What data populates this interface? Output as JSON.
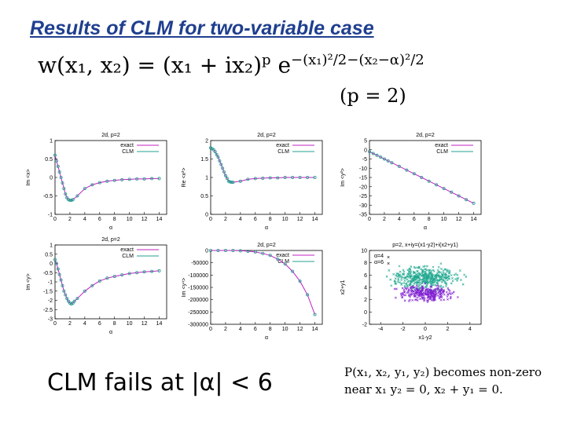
{
  "slide": {
    "title": "Results of CLM for two-variable case",
    "formula_lhs": "w(x₁, x₂)  =  (x₁ + ix₂)",
    "formula_p": "p",
    "formula_e": " e",
    "formula_exp": "−(x₁)²/2−(x₂−α)²/2",
    "p_condition": "(p = 2)",
    "conclusion": "CLM fails at |α| < 6",
    "note_line1": "P(x₁, x₂, y₁, y₂) becomes non-zero",
    "note_line2": "near x₁   y₂ = 0,  x₂ + y₁ = 0."
  },
  "colors": {
    "exact": "#c020c0",
    "clm": "#20a090",
    "purple": "#8020d0",
    "green": "#20a890"
  },
  "chart_data": [
    {
      "type": "line",
      "title": "2d, p=2",
      "ylabel": "Im <x>",
      "xlabel": "α",
      "xlim": [
        0,
        15
      ],
      "ylim": [
        -1,
        1
      ],
      "xticks": [
        0,
        2,
        4,
        6,
        8,
        10,
        12,
        14
      ],
      "yticks": [
        -1,
        -0.5,
        0,
        0.5,
        1
      ],
      "legend": [
        "exact",
        "CLM"
      ],
      "series": [
        {
          "name": "CLM",
          "x": [
            0,
            0.2,
            0.4,
            0.6,
            0.8,
            1,
            1.2,
            1.4,
            1.6,
            1.8,
            2,
            2.2,
            2.4,
            3,
            4,
            5,
            6,
            7,
            8,
            9,
            10,
            11,
            12,
            13,
            14
          ],
          "y": [
            0.6,
            0.45,
            0.3,
            0.15,
            0,
            -0.15,
            -0.3,
            -0.45,
            -0.55,
            -0.6,
            -0.62,
            -0.62,
            -0.6,
            -0.5,
            -0.3,
            -0.2,
            -0.14,
            -0.1,
            -0.08,
            -0.06,
            -0.05,
            -0.04,
            -0.04,
            -0.03,
            -0.03
          ]
        }
      ]
    },
    {
      "type": "line",
      "title": "2d, p=2",
      "ylabel": "Re <x²>",
      "xlabel": "α",
      "xlim": [
        0,
        15
      ],
      "ylim": [
        0,
        2
      ],
      "xticks": [
        0,
        2,
        4,
        6,
        8,
        10,
        12,
        14
      ],
      "yticks": [
        0,
        0.5,
        1,
        1.5,
        2
      ],
      "legend": [
        "exact",
        "CLM"
      ],
      "series": [
        {
          "name": "CLM",
          "x": [
            0,
            0.2,
            0.4,
            0.6,
            0.8,
            1,
            1.2,
            1.4,
            1.6,
            1.8,
            2,
            2.2,
            2.4,
            2.6,
            2.8,
            3,
            4,
            5,
            6,
            7,
            8,
            9,
            10,
            11,
            12,
            13,
            14
          ],
          "y": [
            1.8,
            1.78,
            1.75,
            1.7,
            1.62,
            1.55,
            1.45,
            1.35,
            1.25,
            1.15,
            1.05,
            0.98,
            0.9,
            0.88,
            0.87,
            0.87,
            0.9,
            0.95,
            0.97,
            0.98,
            0.99,
            0.99,
            1,
            1,
            1,
            1,
            1
          ]
        }
      ]
    },
    {
      "type": "line",
      "title": "2d, p=2",
      "ylabel": "Im <y²>",
      "xlabel": "α",
      "xlim": [
        0,
        15
      ],
      "ylim": [
        -35,
        5
      ],
      "xticks": [
        0,
        2,
        4,
        6,
        8,
        10,
        12,
        14
      ],
      "yticks": [
        -35,
        -30,
        -25,
        -20,
        -15,
        -10,
        -5,
        0,
        5
      ],
      "legend": [
        "exact",
        "CLM"
      ],
      "series": [
        {
          "name": "CLM",
          "x": [
            0,
            0.5,
            1,
            1.5,
            2,
            2.5,
            3,
            4,
            5,
            6,
            7,
            8,
            9,
            10,
            11,
            12,
            13,
            14
          ],
          "y": [
            -1,
            -2,
            -3,
            -4,
            -5,
            -6,
            -7,
            -9,
            -11,
            -13,
            -15,
            -17,
            -19,
            -21,
            -23,
            -25,
            -27,
            -29
          ]
        }
      ]
    },
    {
      "type": "line",
      "title": "2d, p=2",
      "ylabel": "Im <y>",
      "xlabel": "α",
      "xlim": [
        0,
        15
      ],
      "ylim": [
        -3,
        1
      ],
      "xticks": [
        0,
        2,
        4,
        6,
        8,
        10,
        12,
        14
      ],
      "yticks": [
        -3,
        -2.5,
        -2,
        -1.5,
        -1,
        -0.5,
        0,
        0.5,
        1
      ],
      "legend": [
        "exact",
        "CLM"
      ],
      "series": [
        {
          "name": "CLM",
          "x": [
            0,
            0.2,
            0.4,
            0.6,
            0.8,
            1,
            1.2,
            1.4,
            1.6,
            1.8,
            2,
            2.2,
            2.4,
            2.6,
            3,
            4,
            5,
            6,
            7,
            8,
            9,
            10,
            11,
            12,
            13,
            14
          ],
          "y": [
            0.2,
            0,
            -0.3,
            -0.6,
            -0.9,
            -1.2,
            -1.5,
            -1.7,
            -1.9,
            -2.05,
            -2.15,
            -2.2,
            -2.15,
            -2.05,
            -1.9,
            -1.5,
            -1.2,
            -0.95,
            -0.8,
            -0.7,
            -0.62,
            -0.55,
            -0.5,
            -0.46,
            -0.43,
            -0.4
          ]
        }
      ]
    },
    {
      "type": "line",
      "title": "2d, p=2",
      "ylabel": "Im <y⁴>",
      "xlabel": "α",
      "xlim": [
        0,
        15
      ],
      "ylim": [
        -300000,
        0
      ],
      "xticks": [
        0,
        2,
        4,
        6,
        8,
        10,
        12,
        14
      ],
      "yticks": [
        -300000,
        -250000,
        -200000,
        -150000,
        -100000,
        -50000,
        0
      ],
      "legend": [
        "exact",
        "CLM"
      ],
      "series": [
        {
          "name": "CLM",
          "x": [
            0,
            1,
            2,
            3,
            4,
            5,
            6,
            7,
            8,
            9,
            10,
            11,
            12,
            13,
            14
          ],
          "y": [
            0,
            0,
            0,
            0,
            -1000,
            -3000,
            -6000,
            -12000,
            -20000,
            -35000,
            -55000,
            -85000,
            -125000,
            -180000,
            -260000
          ]
        }
      ]
    },
    {
      "type": "scatter",
      "title": "p=2, x+iy=(x1-y2)+i(x2+y1)",
      "ylabel": "x2+y1",
      "xlabel": "x1-y2",
      "xlim": [
        -5,
        5
      ],
      "ylim": [
        -2,
        10
      ],
      "xticks": [
        -4,
        -2,
        0,
        2,
        4
      ],
      "yticks": [
        -2,
        0,
        2,
        4,
        6,
        8,
        10
      ],
      "legend": [
        "α=4",
        "α=6"
      ],
      "series": [
        {
          "name": "α=4",
          "center": [
            0,
            3
          ],
          "spread": [
            1.6,
            0.9
          ],
          "n": 260
        },
        {
          "name": "α=6",
          "center": [
            0,
            5.5
          ],
          "spread": [
            1.8,
            1.2
          ],
          "n": 420
        }
      ]
    }
  ]
}
